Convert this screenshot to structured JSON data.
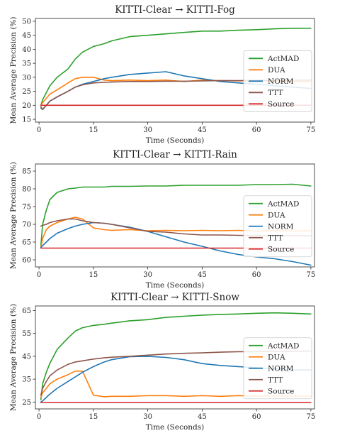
{
  "legend_entries": [
    {
      "name": "ActMAD",
      "color": "#2ca02c"
    },
    {
      "name": "DUA",
      "color": "#ff7f0e"
    },
    {
      "name": "NORM",
      "color": "#1f77b4"
    },
    {
      "name": "TTT",
      "color": "#8c564b"
    },
    {
      "name": "Source",
      "color": "#d62728"
    }
  ],
  "chart_data": [
    {
      "type": "line",
      "title": "KITTI-Clear → KITTI-Fog",
      "xlabel": "Time (Seconds)",
      "ylabel": "Mean Average Precision (%)",
      "xlim": [
        -1,
        76
      ],
      "ylim": [
        14,
        51
      ],
      "xticks": [
        0,
        15,
        30,
        45,
        60,
        75
      ],
      "yticks": [
        15,
        20,
        25,
        30,
        35,
        40,
        45,
        50
      ],
      "legend_position": "center-right",
      "x": [
        0.5,
        1,
        2,
        3,
        5,
        8,
        10,
        12,
        15,
        18,
        20,
        25,
        30,
        35,
        40,
        45,
        50,
        55,
        60,
        65,
        70,
        75
      ],
      "series": [
        {
          "name": "ActMAD",
          "color": "#2ca02c",
          "values": [
            20,
            22,
            24.5,
            27,
            30,
            33,
            36.5,
            39,
            41,
            42,
            43,
            44.5,
            45,
            45.5,
            46,
            46.5,
            46.5,
            46.8,
            47,
            47.3,
            47.5,
            47.5
          ]
        },
        {
          "name": "DUA",
          "color": "#ff7f0e",
          "values": [
            20,
            21,
            22.5,
            24,
            25.5,
            28,
            29.5,
            30,
            30,
            29,
            28.8,
            29,
            28.8,
            29,
            28.5,
            29,
            28.8,
            28.7,
            28.8,
            28.6,
            28.5,
            28.5
          ]
        },
        {
          "name": "NORM",
          "color": "#1f77b4",
          "values": [
            19,
            18.5,
            20,
            21.5,
            23,
            25,
            26.5,
            27.5,
            28.5,
            29.5,
            30,
            31,
            31.5,
            32,
            30.5,
            29.5,
            28.5,
            28,
            27.5,
            27,
            26.5,
            26
          ]
        },
        {
          "name": "TTT",
          "color": "#8c564b",
          "values": [
            19.5,
            18.5,
            20,
            21.5,
            23,
            25,
            26.5,
            27.3,
            28,
            28.2,
            28.3,
            28.5,
            28.5,
            28.6,
            28.6,
            28.7,
            28.8,
            28.8,
            28.9,
            28.9,
            29,
            29
          ]
        },
        {
          "name": "Source",
          "color": "#d62728",
          "values": [
            20,
            20,
            20,
            20,
            20,
            20,
            20,
            20,
            20,
            20,
            20,
            20,
            20,
            20,
            20,
            20,
            20,
            20,
            20,
            20,
            20,
            20
          ]
        }
      ]
    },
    {
      "type": "line",
      "title": "KITTI-Clear → KITTI-Rain",
      "xlabel": "Time (Seconds)",
      "ylabel": "Mean Average Precision (%)",
      "xlim": [
        -1,
        76
      ],
      "ylim": [
        58,
        87
      ],
      "xticks": [
        0,
        15,
        30,
        45,
        60,
        75
      ],
      "yticks": [
        60,
        65,
        70,
        75,
        80,
        85
      ],
      "legend_position": "center-right",
      "x": [
        0.5,
        1,
        2,
        3,
        5,
        8,
        10,
        12,
        15,
        18,
        20,
        25,
        30,
        35,
        40,
        45,
        50,
        55,
        60,
        65,
        70,
        75
      ],
      "series": [
        {
          "name": "ActMAD",
          "color": "#2ca02c",
          "values": [
            64,
            70,
            74,
            77,
            79,
            80,
            80.2,
            80.5,
            80.5,
            80.5,
            80.7,
            80.7,
            80.8,
            80.8,
            81,
            81,
            81,
            81,
            81.2,
            81.2,
            81.3,
            80.8
          ]
        },
        {
          "name": "DUA",
          "color": "#ff7f0e",
          "values": [
            63.5,
            66,
            68.5,
            69.5,
            70.5,
            71.5,
            72,
            71.5,
            69,
            68.5,
            68.3,
            68.5,
            68.2,
            68.3,
            68.2,
            68.3,
            68.2,
            68.3,
            68.1,
            68.2,
            68.1,
            68.2
          ]
        },
        {
          "name": "NORM",
          "color": "#1f77b4",
          "values": [
            63.5,
            64,
            65,
            66,
            67.5,
            68.8,
            69.5,
            70,
            70.5,
            70.3,
            70,
            69.2,
            68,
            66.5,
            65,
            63.8,
            62.5,
            61.5,
            60.8,
            60.3,
            59.5,
            58.5
          ]
        },
        {
          "name": "TTT",
          "color": "#8c564b",
          "values": [
            69.5,
            69.7,
            70,
            70.5,
            71,
            71.5,
            71.5,
            71,
            70.5,
            70.3,
            70,
            69,
            68,
            67.8,
            67.3,
            67,
            67,
            66.9,
            66.8,
            66.8,
            66.8,
            66.8
          ]
        },
        {
          "name": "Source",
          "color": "#d62728",
          "values": [
            63.3,
            63.3,
            63.3,
            63.3,
            63.3,
            63.3,
            63.3,
            63.3,
            63.3,
            63.3,
            63.3,
            63.3,
            63.3,
            63.3,
            63.3,
            63.3,
            63.3,
            63.3,
            63.3,
            63.3,
            63.3,
            63.3
          ]
        }
      ]
    },
    {
      "type": "line",
      "title": "KITTI-Clear → KITTI-Snow",
      "xlabel": "Time (Seconds)",
      "ylabel": "Mean Average Precision (%)",
      "xlim": [
        -1,
        76
      ],
      "ylim": [
        22,
        67
      ],
      "xticks": [
        0,
        15,
        30,
        45,
        60,
        75
      ],
      "yticks": [
        25,
        35,
        45,
        55,
        65
      ],
      "legend_position": "center-right",
      "x": [
        0.5,
        1,
        2,
        3,
        5,
        8,
        10,
        12,
        15,
        18,
        20,
        25,
        30,
        35,
        40,
        45,
        50,
        55,
        60,
        65,
        70,
        75
      ],
      "series": [
        {
          "name": "ActMAD",
          "color": "#2ca02c",
          "values": [
            26,
            33,
            38,
            42,
            48,
            53,
            56,
            57.5,
            58.5,
            59,
            59.5,
            60.5,
            61,
            62,
            62.5,
            63,
            63.3,
            63.5,
            63.8,
            64,
            63.8,
            63.5
          ]
        },
        {
          "name": "DUA",
          "color": "#ff7f0e",
          "values": [
            27,
            29,
            31,
            33,
            35,
            37,
            38.5,
            38.5,
            28,
            27.3,
            27.5,
            27.5,
            27.8,
            27.8,
            27.5,
            27.8,
            27.5,
            27.8,
            27.6,
            27.7,
            27.6,
            27.6
          ]
        },
        {
          "name": "NORM",
          "color": "#1f77b4",
          "values": [
            25,
            25.5,
            27,
            28.5,
            31,
            34,
            36,
            38,
            40.5,
            42.5,
            43.5,
            44.8,
            45,
            44.5,
            43.5,
            41.8,
            41,
            40.5,
            40,
            39.5,
            39,
            39
          ]
        },
        {
          "name": "TTT",
          "color": "#8c564b",
          "values": [
            28,
            31,
            34,
            36.5,
            39,
            41.5,
            42.5,
            43,
            43.8,
            44.3,
            44.6,
            45,
            45.5,
            46,
            46.3,
            46.5,
            46.8,
            47,
            47,
            47.2,
            47.2,
            47.3
          ]
        },
        {
          "name": "Source",
          "color": "#d62728",
          "values": [
            24.8,
            24.8,
            24.8,
            24.8,
            24.8,
            24.8,
            24.8,
            24.8,
            24.8,
            24.8,
            24.8,
            24.8,
            24.8,
            24.8,
            24.8,
            24.8,
            24.8,
            24.8,
            24.8,
            24.8,
            24.8,
            24.8
          ]
        }
      ]
    }
  ]
}
